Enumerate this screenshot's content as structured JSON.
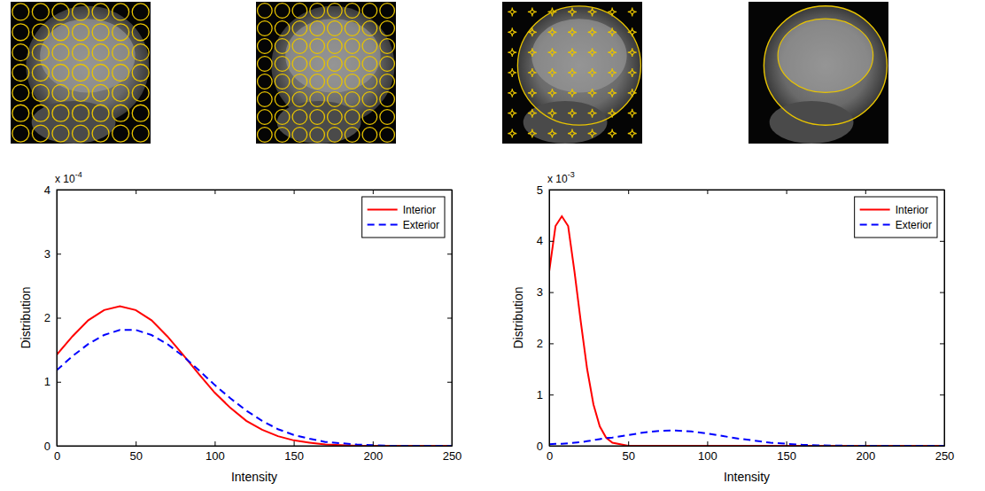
{
  "chart_data": [
    {
      "type": "line",
      "x_label": "Intensity",
      "y_label": "Distribution",
      "annotations": [
        {
          "text": "x 10",
          "superscript": "-4"
        }
      ],
      "x": [
        0,
        10,
        20,
        30,
        40,
        50,
        60,
        70,
        80,
        90,
        100,
        110,
        120,
        130,
        140,
        150,
        160,
        170,
        180,
        190,
        200,
        210,
        220,
        230,
        240,
        250
      ],
      "series": [
        {
          "name": "Interior",
          "color": "#ff0000",
          "line_style": "solid",
          "values": [
            1.42,
            1.71,
            1.96,
            2.12,
            2.18,
            2.12,
            1.96,
            1.71,
            1.42,
            1.12,
            0.83,
            0.59,
            0.39,
            0.25,
            0.15,
            0.085,
            0.05,
            0.02,
            0.01,
            0,
            0,
            0,
            0,
            0,
            0,
            0
          ]
        },
        {
          "name": "Exterior",
          "color": "#0000ff",
          "line_style": "dashed",
          "values": [
            1.18,
            1.4,
            1.59,
            1.73,
            1.81,
            1.81,
            1.73,
            1.59,
            1.4,
            1.18,
            0.95,
            0.74,
            0.55,
            0.39,
            0.26,
            0.17,
            0.11,
            0.06,
            0.04,
            0.02,
            0.01,
            0,
            0,
            0,
            0,
            0
          ]
        }
      ],
      "xlim": [
        0,
        250
      ],
      "xticks": [
        0,
        50,
        100,
        150,
        200,
        250
      ],
      "ylim": [
        0,
        4
      ],
      "yticks": [
        0,
        1,
        2,
        3,
        4
      ],
      "legend": "northeast"
    },
    {
      "type": "line",
      "x_label": "Intensity",
      "y_label": "Distribution",
      "annotations": [
        {
          "text": "x 10",
          "superscript": "-3"
        }
      ],
      "x": [
        0,
        4,
        8,
        12,
        16,
        20,
        24,
        28,
        32,
        36,
        40,
        50,
        60,
        70,
        80,
        90,
        100,
        110,
        120,
        130,
        140,
        150,
        160,
        170,
        180,
        190,
        200,
        210,
        220,
        230,
        240,
        250
      ],
      "series": [
        {
          "name": "Interior",
          "color": "#ff0000",
          "line_style": "solid",
          "values": [
            3.4,
            4.29,
            4.48,
            4.29,
            3.4,
            2.42,
            1.5,
            0.81,
            0.38,
            0.16,
            0.06,
            0,
            0,
            0,
            0,
            0,
            0,
            0,
            0,
            0,
            0,
            0,
            0,
            0,
            0,
            0,
            0,
            0,
            0,
            0,
            0,
            0
          ]
        },
        {
          "name": "Exterior",
          "color": "#0000ff",
          "line_style": "dashed",
          "values": [
            0.03,
            0.04,
            0.04,
            0.05,
            0.06,
            0.07,
            0.09,
            0.11,
            0.13,
            0.15,
            0.16,
            0.21,
            0.26,
            0.29,
            0.3,
            0.28,
            0.24,
            0.19,
            0.14,
            0.1,
            0.06,
            0.04,
            0.02,
            0.01,
            0.005,
            0,
            0,
            0,
            0,
            0,
            0,
            0
          ]
        }
      ],
      "xlim": [
        0,
        250
      ],
      "xticks": [
        0,
        50,
        100,
        150,
        200,
        250
      ],
      "ylim": [
        0,
        5
      ],
      "yticks": [
        0,
        1,
        2,
        3,
        4,
        5
      ],
      "legend": "northeast"
    }
  ]
}
